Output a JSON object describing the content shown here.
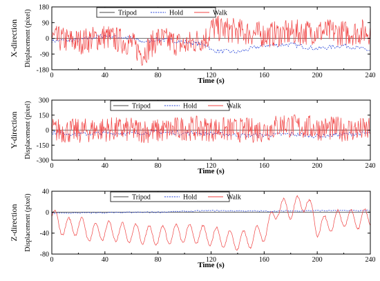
{
  "chart_data": [
    {
      "type": "line",
      "direction_label": "X-direction",
      "xlabel": "Time (s)",
      "ylabel": "Displacement (pixel)",
      "xlim": [
        0,
        240
      ],
      "ylim": [
        -180,
        180
      ],
      "xticks": [
        "0",
        "40",
        "80",
        "120",
        "160",
        "200",
        "240"
      ],
      "yticks": [
        "-180",
        "-90",
        "0",
        "90",
        "180"
      ],
      "legend_position": "top-left",
      "series": [
        {
          "name": "Tripod",
          "color": "#444444",
          "style": "solid",
          "x": [
            0,
            240
          ],
          "values": [
            0,
            0
          ]
        },
        {
          "name": "Hold",
          "color": "#1f3fd8",
          "style": "dashed",
          "x": [
            0,
            20,
            40,
            60,
            68,
            80,
            100,
            118,
            120,
            140,
            160,
            180,
            200,
            220,
            240
          ],
          "values": [
            -15,
            -10,
            15,
            0,
            -20,
            -5,
            -20,
            -40,
            -70,
            -80,
            -40,
            -35,
            -60,
            -40,
            -70
          ]
        },
        {
          "name": "Walk",
          "color": "#f04040",
          "style": "solid",
          "x": [
            0,
            20,
            40,
            60,
            68,
            80,
            100,
            118,
            120,
            140,
            160,
            180,
            200,
            220,
            240
          ],
          "values": [
            0,
            -20,
            10,
            -30,
            -90,
            0,
            -40,
            10,
            60,
            40,
            20,
            30,
            40,
            30,
            40
          ]
        }
      ]
    },
    {
      "type": "line",
      "direction_label": "Y-direction",
      "xlabel": "Time (s)",
      "ylabel": "Displacement (pixel)",
      "xlim": [
        0,
        240
      ],
      "ylim": [
        -300,
        300
      ],
      "xticks": [
        "0",
        "40",
        "80",
        "120",
        "160",
        "200",
        "240"
      ],
      "yticks": [
        "-300",
        "-150",
        "0",
        "150",
        "300"
      ],
      "legend_position": "top-center",
      "series": [
        {
          "name": "Tripod",
          "color": "#444444",
          "style": "solid",
          "x": [
            0,
            240
          ],
          "values": [
            0,
            0
          ]
        },
        {
          "name": "Hold",
          "color": "#1f3fd8",
          "style": "dashed",
          "x": [
            0,
            20,
            40,
            60,
            80,
            100,
            120,
            140,
            160,
            180,
            200,
            220,
            240
          ],
          "values": [
            -20,
            -40,
            -30,
            -30,
            -20,
            -30,
            -30,
            -50,
            -50,
            -40,
            -60,
            -40,
            -30
          ]
        },
        {
          "name": "Walk",
          "color": "#f04040",
          "style": "solid",
          "x": [
            0,
            20,
            40,
            60,
            80,
            100,
            120,
            140,
            160,
            175,
            180,
            200,
            220,
            240
          ],
          "values": [
            0,
            -10,
            10,
            0,
            -10,
            20,
            10,
            0,
            0,
            60,
            40,
            20,
            10,
            0
          ]
        }
      ]
    },
    {
      "type": "line",
      "direction_label": "Z-direction",
      "xlabel": "Time (s)",
      "ylabel": "Displacement (pixel)",
      "xlim": [
        0,
        240
      ],
      "ylim": [
        -80,
        40
      ],
      "xticks": [
        "0",
        "40",
        "80",
        "120",
        "160",
        "200",
        "240"
      ],
      "yticks": [
        "-80",
        "-40",
        "0",
        "40"
      ],
      "legend_position": "top-center",
      "series": [
        {
          "name": "Tripod",
          "color": "#444444",
          "style": "solid",
          "x": [
            0,
            240
          ],
          "values": [
            0,
            0
          ]
        },
        {
          "name": "Hold",
          "color": "#1f3fd8",
          "style": "dashed",
          "x": [
            0,
            40,
            80,
            120,
            160,
            200,
            240
          ],
          "values": [
            -2,
            -1,
            0,
            3,
            2,
            3,
            3
          ]
        },
        {
          "name": "Walk",
          "color": "#f04040",
          "style": "solid",
          "x": [
            0,
            10,
            20,
            30,
            40,
            60,
            80,
            100,
            120,
            140,
            150,
            162,
            170,
            180,
            192,
            200,
            210,
            220,
            230,
            240
          ],
          "values": [
            -10,
            -30,
            -25,
            -40,
            -35,
            -40,
            -45,
            -40,
            -45,
            -55,
            -50,
            -35,
            10,
            5,
            22,
            -30,
            -20,
            -10,
            -15,
            -10
          ]
        }
      ]
    }
  ]
}
